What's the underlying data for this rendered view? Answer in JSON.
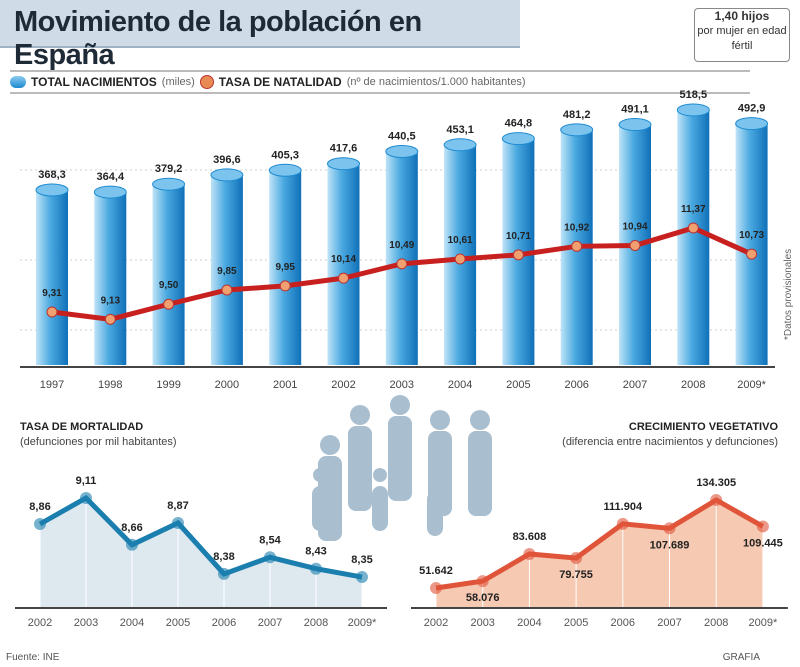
{
  "title": "Movimiento de la población en España",
  "callout": {
    "value": "1,40 hijos",
    "text": "por mujer en edad fértil"
  },
  "legend": {
    "births_label": "TOTAL NACIMIENTOS",
    "births_unit": "(miles)",
    "rate_label": "TASA DE NATALIDAD",
    "rate_unit": "(nº de nacimientos/1.000 habitantes)"
  },
  "note": "*Datos provisionales",
  "source": "Fuente: INE",
  "credit": "GRAFIA",
  "colors": {
    "bar": "#1c8ad0",
    "line": "#c8201e",
    "mortality": "#1a7fae",
    "growth": "#e0553a"
  },
  "chart_data": [
    {
      "type": "bar",
      "title": "TOTAL NACIMIENTOS",
      "ylabel": "miles",
      "categories": [
        "1997",
        "1998",
        "1999",
        "2000",
        "2001",
        "2002",
        "2003",
        "2004",
        "2005",
        "2006",
        "2007",
        "2008",
        "2009*"
      ],
      "values": [
        368.3,
        364.4,
        379.2,
        396.6,
        405.3,
        417.6,
        440.5,
        453.1,
        464.8,
        481.2,
        491.1,
        518.5,
        492.9
      ],
      "labels": [
        "368,3",
        "364,4",
        "379,2",
        "396,6",
        "405,3",
        "417,6",
        "440,5",
        "453,1",
        "464,8",
        "481,2",
        "491,1",
        "518,5",
        "492,9"
      ]
    },
    {
      "type": "line",
      "title": "TASA DE NATALIDAD",
      "ylabel": "nº de nacimientos/1.000 habitantes",
      "categories": [
        "1997",
        "1998",
        "1999",
        "2000",
        "2001",
        "2002",
        "2003",
        "2004",
        "2005",
        "2006",
        "2007",
        "2008",
        "2009*"
      ],
      "values": [
        9.31,
        9.13,
        9.5,
        9.85,
        9.95,
        10.14,
        10.49,
        10.61,
        10.71,
        10.92,
        10.94,
        11.37,
        10.73
      ],
      "labels": [
        "9,31",
        "9,13",
        "9,50",
        "9,85",
        "9,95",
        "10,14",
        "10,49",
        "10,61",
        "10,71",
        "10,92",
        "10,94",
        "11,37",
        "10,73"
      ]
    },
    {
      "type": "area",
      "title": "TASA DE MORTALIDAD",
      "subtitle": "(defunciones por mil habitantes)",
      "categories": [
        "2002",
        "2003",
        "2004",
        "2005",
        "2006",
        "2007",
        "2008",
        "2009*"
      ],
      "values": [
        8.86,
        9.11,
        8.66,
        8.87,
        8.38,
        8.54,
        8.43,
        8.35
      ],
      "labels": [
        "8,86",
        "9,11",
        "8,66",
        "8,87",
        "8,38",
        "8,54",
        "8,43",
        "8,35"
      ]
    },
    {
      "type": "area",
      "title": "CRECIMIENTO VEGETATIVO",
      "subtitle": "(diferencia entre nacimientos y defunciones)",
      "categories": [
        "2002",
        "2003",
        "2004",
        "2005",
        "2006",
        "2007",
        "2008",
        "2009*"
      ],
      "values": [
        51642,
        58076,
        83608,
        79755,
        111904,
        107689,
        134305,
        109445
      ],
      "labels": [
        "51.642",
        "58.076",
        "83.608",
        "79.755",
        "111.904",
        "107.689",
        "134.305",
        "109.445"
      ]
    }
  ]
}
